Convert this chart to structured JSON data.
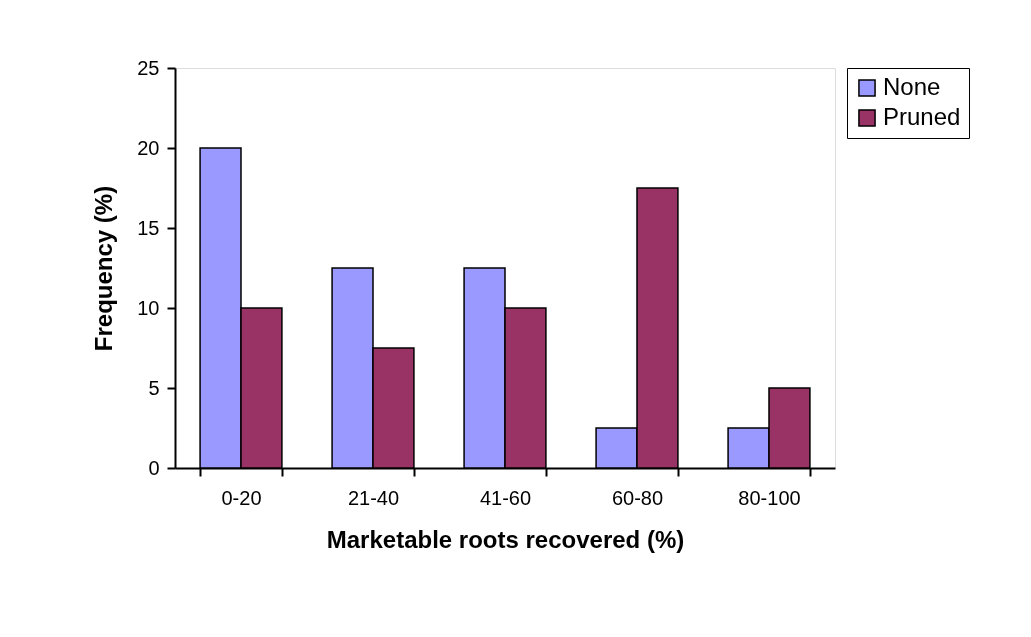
{
  "chart_data": {
    "type": "bar",
    "xlabel": "Marketable roots recovered (%)",
    "ylabel": "Frequency (%)",
    "categories": [
      "0-20",
      "21-40",
      "41-60",
      "60-80",
      "80-100"
    ],
    "series": [
      {
        "name": "None",
        "color": "#9999ff",
        "values": [
          20,
          12.5,
          12.5,
          2.5,
          2.5
        ]
      },
      {
        "name": "Pruned",
        "color": "#993366",
        "values": [
          10,
          7.5,
          10,
          17.5,
          5
        ]
      }
    ],
    "ylim": [
      0,
      25
    ],
    "yticks": [
      0,
      5,
      10,
      15,
      20,
      25
    ],
    "grid": false,
    "legend": "right"
  }
}
